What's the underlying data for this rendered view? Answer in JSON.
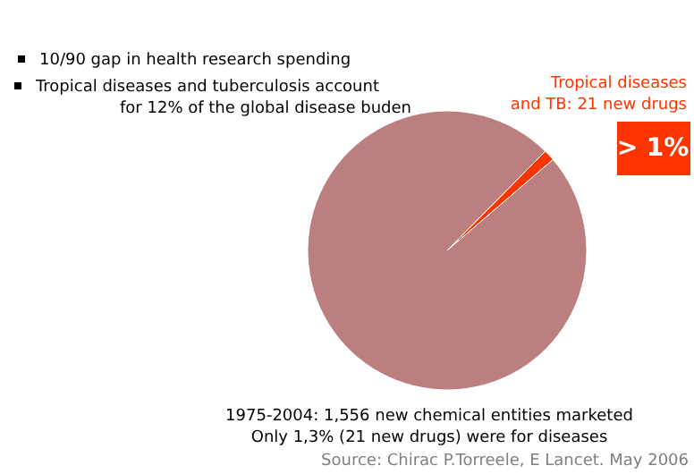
{
  "chart_data": {
    "type": "pie",
    "categories": [
      "Tropical diseases and TB: 21 new drugs",
      null
    ],
    "values": [
      1.3,
      98.7
    ],
    "colors": [
      "#ff3300",
      "#bc7f7f"
    ],
    "value_labels": [
      "> 1%",
      null
    ],
    "annotations": [
      "10/90 gap in health research spending",
      "Tropical diseases and tuberculosis account",
      "for 12% of the global disease buden",
      "1975-2004: 1,556 new chemical entities marketed",
      "Only 1,3% (21 new drugs) were for diseases",
      "Source: Chirac P.Torreele, E Lancet. May 2006"
    ]
  }
}
